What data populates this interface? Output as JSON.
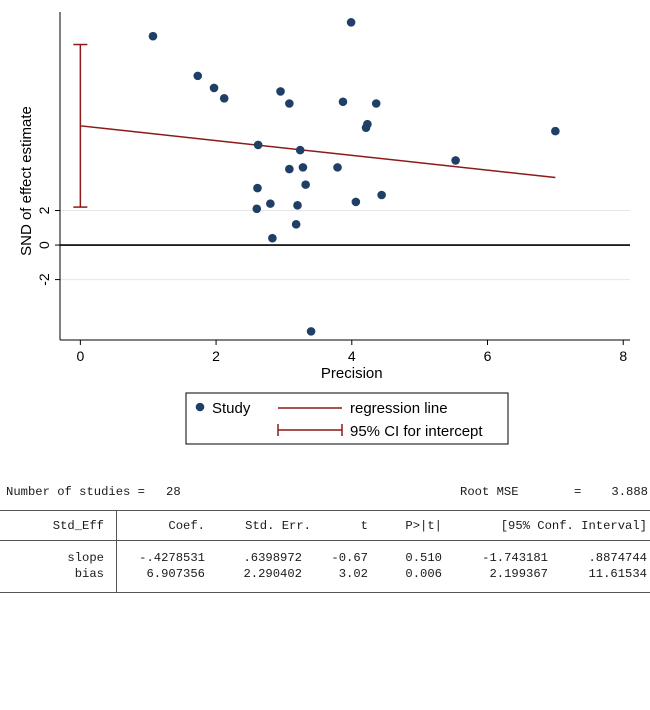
{
  "chart_data": {
    "type": "scatter",
    "xlabel": "Precision",
    "ylabel": "SND of effect estimate",
    "x_ticks": [
      "0",
      "2",
      "4",
      "6",
      "8"
    ],
    "y_ticks": [
      "-2",
      "0",
      "2"
    ],
    "xlim": [
      -0.3,
      8.1
    ],
    "ylim": [
      -5.5,
      13.5
    ],
    "grid": "horizontal",
    "series": [
      {
        "name": "Study",
        "points": [
          [
            1.07,
            12.1
          ],
          [
            1.73,
            9.8
          ],
          [
            1.97,
            9.1
          ],
          [
            2.12,
            8.5
          ],
          [
            2.95,
            8.9
          ],
          [
            3.08,
            8.2
          ],
          [
            3.87,
            8.3
          ],
          [
            3.99,
            12.9
          ],
          [
            4.36,
            8.2
          ],
          [
            4.21,
            6.8
          ],
          [
            4.23,
            7.0
          ],
          [
            2.62,
            5.8
          ],
          [
            3.24,
            5.5
          ],
          [
            3.08,
            4.4
          ],
          [
            3.28,
            4.5
          ],
          [
            3.79,
            4.5
          ],
          [
            3.32,
            3.5
          ],
          [
            2.61,
            3.3
          ],
          [
            2.8,
            2.4
          ],
          [
            2.6,
            2.1
          ],
          [
            3.2,
            2.3
          ],
          [
            4.06,
            2.5
          ],
          [
            4.44,
            2.9
          ],
          [
            3.18,
            1.2
          ],
          [
            2.83,
            0.4
          ],
          [
            3.4,
            -5.0
          ],
          [
            5.53,
            4.9
          ],
          [
            7.0,
            6.6
          ]
        ]
      }
    ],
    "regression_line": {
      "name": "regression line",
      "intercept": 6.907356,
      "slope": -0.4278531,
      "x_range": [
        0,
        7.0
      ]
    },
    "ci_intercept": {
      "name": "95% CI for intercept",
      "lower": 2.199367,
      "upper": 11.61534
    },
    "legend": {
      "position": "bottom",
      "items": [
        "Study",
        "regression line",
        "95% CI for intercept"
      ]
    },
    "colors": {
      "points": "#1f3f66",
      "regression": "#8b1a1a",
      "zero_line": "#000000",
      "grid": "#e6e6e6"
    }
  },
  "stats": {
    "n_label": "Number of studies =",
    "n_value": "28",
    "rmse_label": "Root MSE",
    "rmse_eq": "=",
    "rmse_value": "3.888",
    "headers": [
      "Std_Eff",
      "Coef.",
      "Std. Err.",
      "t",
      "P>|t|",
      "[95% Conf. Interval]"
    ],
    "rows": [
      {
        "name": "slope",
        "coef": "-.4278531",
        "se": ".6398972",
        "t": "-0.67",
        "p": "0.510",
        "lo": "-1.743181",
        "hi": ".8874744"
      },
      {
        "name": "bias",
        "coef": "6.907356",
        "se": "2.290402",
        "t": "3.02",
        "p": "0.006",
        "lo": "2.199367",
        "hi": "11.61534"
      }
    ]
  }
}
